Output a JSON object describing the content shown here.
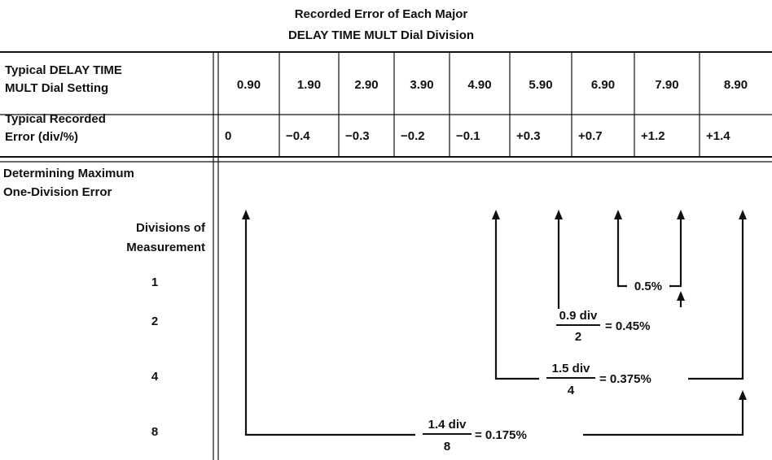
{
  "title": {
    "line1": "Recorded Error of Each Major",
    "line2": "DELAY TIME MULT Dial Division"
  },
  "table": {
    "row1_label": [
      "Typical DELAY TIME",
      "MULT Dial Setting"
    ],
    "row2_label": [
      "Typical Recorded",
      "Error (div/%)"
    ],
    "settings": [
      "0.90",
      "1.90",
      "2.90",
      "3.90",
      "4.90",
      "5.90",
      "6.90",
      "7.90",
      "8.90"
    ],
    "errors": [
      "0",
      "−0.4",
      "−0.3",
      "−0.2",
      "−0.1",
      "+0.3",
      "+0.7",
      "+1.2",
      "+1.4"
    ]
  },
  "lower": {
    "heading": [
      "Determining Maximum",
      "One-Division Error"
    ],
    "divisions_heading": [
      "Divisions of",
      "Measurement"
    ],
    "divisions": [
      "1",
      "2",
      "4",
      "8"
    ]
  },
  "annotations": {
    "one_div": "0.5%",
    "two_div": {
      "numerator": "0.9 div",
      "denominator": "2",
      "result": "= 0.45%"
    },
    "four_div": {
      "numerator": "1.5 div",
      "denominator": "4",
      "result": "= 0.375%"
    },
    "eight_div": {
      "numerator": "1.4 div",
      "denominator": "8",
      "result": "= 0.175%"
    }
  }
}
